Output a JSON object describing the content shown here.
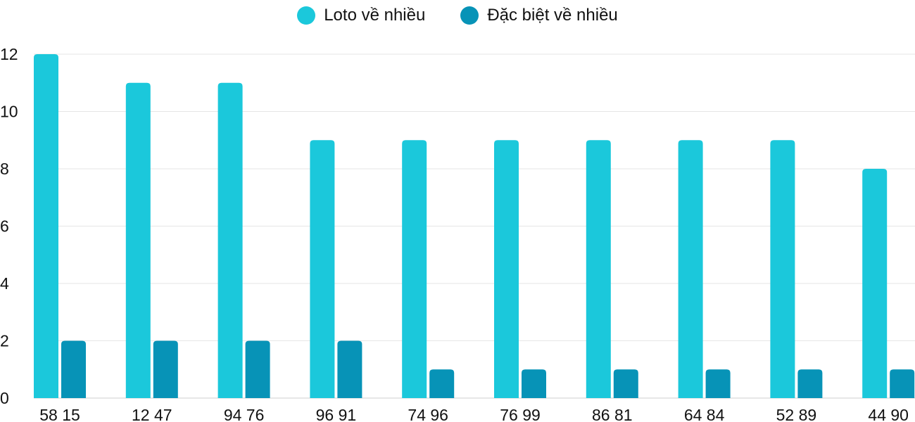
{
  "chart_data": {
    "type": "bar",
    "categories": [
      "58 15",
      "12 47",
      "94 76",
      "96 91",
      "74 96",
      "76 99",
      "86 81",
      "64 84",
      "52 89",
      "44 90"
    ],
    "series": [
      {
        "name": "Loto về nhiều",
        "values": [
          12,
          11,
          11,
          9,
          9,
          9,
          9,
          9,
          9,
          8
        ],
        "color": "#1bc8db"
      },
      {
        "name": "Đặc biệt về nhiều",
        "values": [
          2,
          2,
          2,
          2,
          1,
          1,
          1,
          1,
          1,
          1
        ],
        "color": "#0793b7"
      }
    ],
    "ylim": [
      0,
      12
    ],
    "yticks": [
      0,
      2,
      4,
      6,
      8,
      10,
      12
    ],
    "grid": true,
    "legend_position": "top-center"
  }
}
